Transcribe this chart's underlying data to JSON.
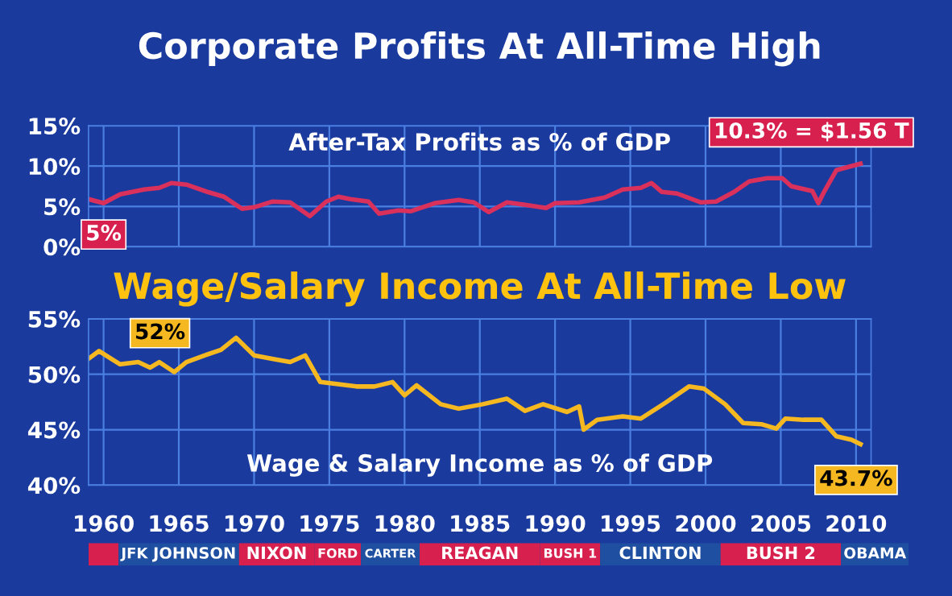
{
  "chart_data": [
    {
      "type": "line",
      "title": "Corporate Profits At All-Time High",
      "subtitle": "After-Tax Profits as % of GDP",
      "series": [
        {
          "color": "#d9305c",
          "x": [
            1959,
            1960,
            1961.1,
            1962.7,
            1963.7,
            1964.5,
            1965.5,
            1966.9,
            1968,
            1969.2,
            1970,
            1971.2,
            1972.4,
            1973.7,
            1974.8,
            1975.6,
            1976.4,
            1977.6,
            1978.3,
            1979.6,
            1980.4,
            1982,
            1983.6,
            1984.6,
            1985.6,
            1986.8,
            1988,
            1989.4,
            1990,
            1991.6,
            1993.3,
            1994.5,
            1995.7,
            1996.4,
            1997.1,
            1998.1,
            1999.7,
            2000.7,
            2001.9,
            2002.9,
            2004.1,
            2005.1,
            2005.7,
            2007.1,
            2007.5,
            2007.9,
            2008.7,
            2009.5,
            2010.3
          ],
          "values": [
            5.9,
            5.4,
            6.5,
            7.1,
            7.3,
            7.9,
            7.7,
            6.8,
            6.2,
            4.7,
            4.9,
            5.6,
            5.5,
            3.8,
            5.6,
            6.2,
            5.9,
            5.6,
            4.1,
            4.5,
            4.4,
            5.4,
            5.8,
            5.5,
            4.3,
            5.5,
            5.2,
            4.8,
            5.4,
            5.5,
            6.1,
            7.1,
            7.3,
            7.9,
            6.8,
            6.6,
            5.5,
            5.6,
            6.8,
            8.1,
            8.5,
            8.5,
            7.5,
            6.9,
            5.4,
            6.9,
            9.5,
            9.9,
            10.3
          ]
        }
      ],
      "xlim": [
        1959,
        2011
      ],
      "xticks": [
        1960,
        1965,
        1970,
        1975,
        1980,
        1985,
        1990,
        1995,
        2000,
        2005,
        2010
      ],
      "ylim": [
        0,
        15
      ],
      "yticks": [
        {
          "value": 0,
          "label": "0%"
        },
        {
          "value": 5,
          "label": "5%"
        },
        {
          "value": 10,
          "label": "10%"
        },
        {
          "value": 15,
          "label": "15%"
        }
      ],
      "tick_labels": "y",
      "grid": true,
      "annotations": [
        {
          "text": "5%",
          "x": 1960,
          "y": 5.4
        },
        {
          "text": "10.3% = $1.56 T",
          "x": 2010.3,
          "y": 10.3
        }
      ]
    },
    {
      "type": "line",
      "title": "Wage/Salary Income At All-Time Low",
      "subtitle": "Wage & Salary Income as % of GDP",
      "series": [
        {
          "color": "#f5b820",
          "x": [
            1959,
            1959.7,
            1960.5,
            1961.1,
            1962.3,
            1963.1,
            1963.7,
            1964.7,
            1965.5,
            1966.7,
            1967.8,
            1968.8,
            1970,
            1971.2,
            1972.4,
            1973.4,
            1974.4,
            1975.6,
            1976.8,
            1978,
            1979.2,
            1980,
            1980.8,
            1982.4,
            1983.6,
            1985.2,
            1986.8,
            1988,
            1989.2,
            1990.8,
            1991.6,
            1991.9,
            1992.8,
            1994.5,
            1995.7,
            1997.3,
            1998.9,
            1999.9,
            2001.3,
            2002.5,
            2003.7,
            2004.7,
            2005.3,
            2006.5,
            2007.7,
            2008.7,
            2009.7,
            2010.3
          ],
          "values": [
            51.4,
            52.1,
            51.4,
            50.9,
            51.1,
            50.6,
            51.1,
            50.2,
            51.1,
            51.7,
            52.2,
            53.3,
            51.7,
            51.4,
            51.1,
            51.7,
            49.3,
            49.1,
            48.9,
            48.9,
            49.3,
            48.1,
            49.0,
            47.3,
            46.9,
            47.3,
            47.8,
            46.7,
            47.3,
            46.6,
            47.1,
            45.0,
            45.9,
            46.2,
            46.0,
            47.4,
            48.9,
            48.7,
            47.3,
            45.6,
            45.5,
            45.1,
            46.0,
            45.9,
            45.9,
            44.4,
            44.1,
            43.7
          ]
        }
      ],
      "xlim": [
        1959,
        2011
      ],
      "xticks": [
        1960,
        1965,
        1970,
        1975,
        1980,
        1985,
        1990,
        1995,
        2000,
        2005,
        2010
      ],
      "ylim": [
        40,
        55
      ],
      "yticks": [
        {
          "value": 40,
          "label": "40%"
        },
        {
          "value": 45,
          "label": "45%"
        },
        {
          "value": 50,
          "label": "50%"
        },
        {
          "value": 55,
          "label": "55%"
        }
      ],
      "tick_labels": "y",
      "grid": true,
      "annotations": [
        {
          "text": "52%",
          "x": 1968.8,
          "y": 53.3
        },
        {
          "text": "43.7%",
          "x": 2010.3,
          "y": 43.7
        }
      ]
    },
    {
      "type": "bar",
      "orientation": "horizontal",
      "categories": [
        null
      ],
      "xlim": [
        1959,
        2013.5
      ],
      "xticks": [
        1960,
        1965,
        1970,
        1975,
        1980,
        1985,
        1990,
        1995,
        2000,
        2005,
        2010
      ],
      "tick_labels": "x",
      "series": [
        {
          "color": "#d8204f",
          "base": [
            1959
          ],
          "values": [
            2
          ]
        },
        {
          "name": "JFK",
          "color": "#1f4fa0",
          "base": [
            1961
          ],
          "values": [
            2.1
          ]
        },
        {
          "name": "JOHNSON",
          "color": "#1f4fa0",
          "base": [
            1963.1
          ],
          "values": [
            5.9
          ]
        },
        {
          "name": "NIXON",
          "color": "#d8204f",
          "base": [
            1969
          ],
          "values": [
            5
          ]
        },
        {
          "name": "FORD",
          "color": "#d8204f",
          "base": [
            1974
          ],
          "values": [
            3.1
          ]
        },
        {
          "name": "CARTER",
          "color": "#1f4fa0",
          "base": [
            1977.1
          ],
          "values": [
            3.9
          ]
        },
        {
          "name": "REAGAN",
          "color": "#d8204f",
          "base": [
            1981
          ],
          "values": [
            8
          ]
        },
        {
          "name": "BUSH 1",
          "color": "#d8204f",
          "base": [
            1989
          ],
          "values": [
            4
          ]
        },
        {
          "name": "CLINTON",
          "color": "#1f4fa0",
          "base": [
            1993
          ],
          "values": [
            8
          ]
        },
        {
          "name": "BUSH 2",
          "color": "#d8204f",
          "base": [
            2001
          ],
          "values": [
            8
          ]
        },
        {
          "name": "OBAMA",
          "color": "#1f4fa0",
          "base": [
            2009
          ],
          "values": [
            4.5
          ]
        }
      ]
    }
  ]
}
